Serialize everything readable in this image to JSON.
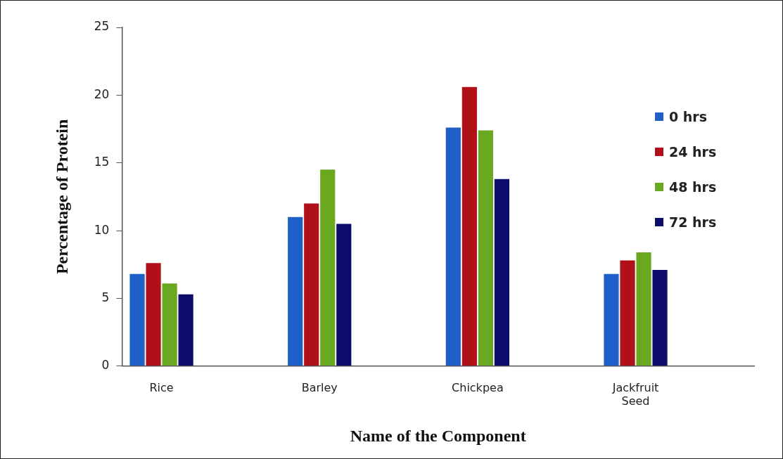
{
  "chart_data": {
    "type": "bar",
    "xlabel": "Name of the Component",
    "ylabel": "Percentage of Protein",
    "categories": [
      "Rice",
      null,
      "Barley",
      null,
      "Chickpea",
      null,
      "Jackfruit Seed",
      null
    ],
    "series": [
      {
        "name": "0 hrs",
        "color": "#1f5fc8",
        "values": [
          6.8,
          null,
          11.0,
          null,
          17.6,
          null,
          6.8,
          null
        ]
      },
      {
        "name": "24 hrs",
        "color": "#b01018",
        "values": [
          7.6,
          null,
          12.0,
          null,
          20.6,
          null,
          7.8,
          null
        ]
      },
      {
        "name": "48 hrs",
        "color": "#6aa820",
        "values": [
          6.1,
          null,
          14.5,
          null,
          17.4,
          null,
          8.4,
          null
        ]
      },
      {
        "name": "72 hrs",
        "color": "#0c0c6a",
        "values": [
          5.3,
          null,
          10.5,
          null,
          13.8,
          null,
          7.1,
          null
        ]
      }
    ],
    "ylim": [
      0,
      25
    ],
    "yticks": [
      0,
      5,
      10,
      15,
      20,
      25
    ],
    "grid": false,
    "legend": "top right"
  }
}
